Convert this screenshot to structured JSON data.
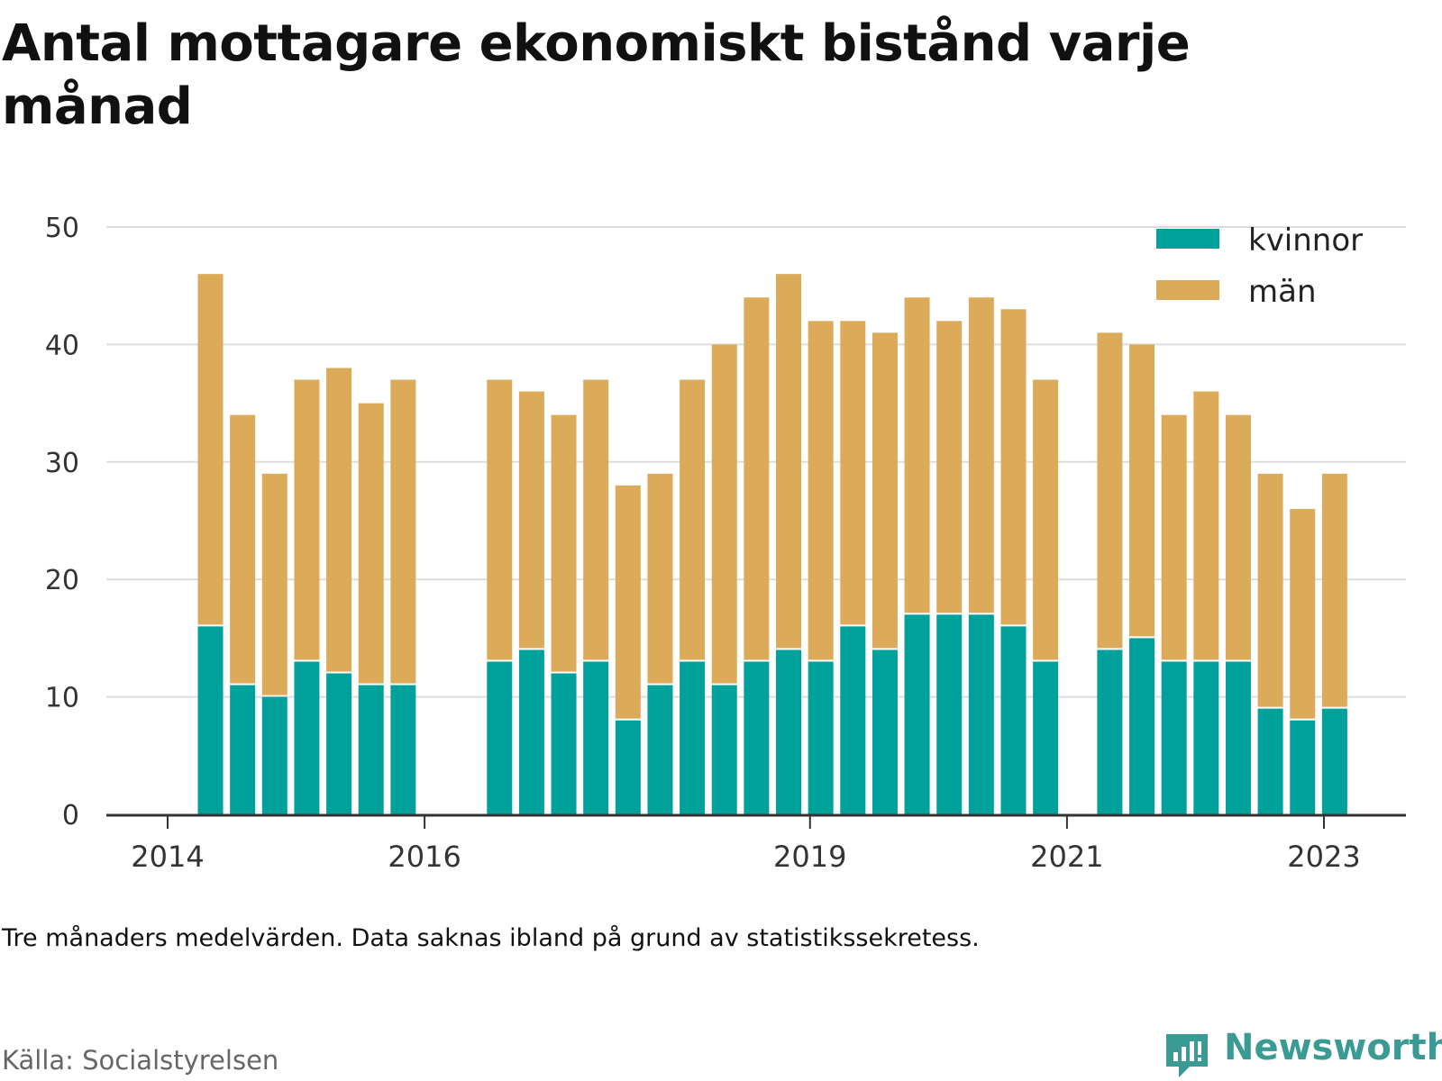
{
  "page": {
    "title": "Antal mottagare ekonomiskt bistånd varje månad",
    "note": "Tre månaders medelvärden. Data saknas ibland på grund av statistikssekretess.",
    "source": "Källa: Socialstyrelsen",
    "brand": "Newsworthy",
    "brand_icon": "newsworthy-chart-bubble-icon"
  },
  "colors": {
    "kvinnor": "#00a19a",
    "man": "#dbab5a",
    "grid": "#dddddd",
    "axis": "#333333",
    "brand": "#3a9a94"
  },
  "chart_data": {
    "type": "bar",
    "stacked": true,
    "title": "Antal mottagare ekonomiskt bistånd varje månad",
    "xlabel": "",
    "ylabel": "",
    "ylim": [
      0,
      50
    ],
    "yticks": [
      0,
      10,
      20,
      30,
      40,
      50
    ],
    "xticks": [
      {
        "label": "2014",
        "date": "2014-01"
      },
      {
        "label": "2016",
        "date": "2016-01"
      },
      {
        "label": "2019",
        "date": "2019-01"
      },
      {
        "label": "2021",
        "date": "2021-01"
      },
      {
        "label": "2023",
        "date": "2023-01"
      }
    ],
    "grid": true,
    "legend": "top-right",
    "categories": [
      "2014-05",
      "2014-08",
      "2014-11",
      "2015-02",
      "2015-05",
      "2015-08",
      "2015-11",
      "2016-08",
      "2016-11",
      "2017-02",
      "2017-05",
      "2017-08",
      "2017-11",
      "2018-02",
      "2018-05",
      "2018-08",
      "2018-11",
      "2019-02",
      "2019-05",
      "2019-08",
      "2019-11",
      "2020-02",
      "2020-05",
      "2020-08",
      "2020-11",
      "2021-05",
      "2021-08",
      "2021-11",
      "2022-02",
      "2022-05",
      "2022-08",
      "2022-11",
      "2023-02"
    ],
    "series": [
      {
        "name": "kvinnor",
        "values": [
          16,
          11,
          10,
          13,
          12,
          11,
          11,
          13,
          14,
          12,
          13,
          8,
          11,
          13,
          11,
          13,
          14,
          13,
          16,
          14,
          17,
          17,
          17,
          16,
          13,
          14,
          15,
          13,
          13,
          13,
          9,
          8,
          9
        ]
      },
      {
        "name": "män",
        "values": [
          30,
          23,
          19,
          24,
          26,
          24,
          26,
          24,
          22,
          22,
          24,
          20,
          18,
          24,
          29,
          31,
          32,
          29,
          26,
          27,
          27,
          25,
          27,
          27,
          24,
          27,
          25,
          21,
          23,
          21,
          20,
          18,
          20
        ]
      }
    ]
  }
}
